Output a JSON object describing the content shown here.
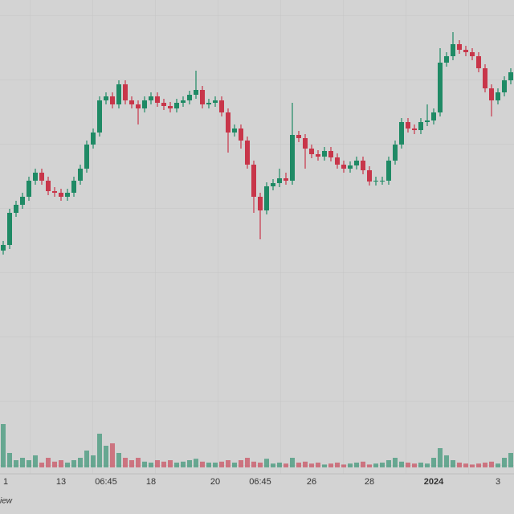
{
  "chart_data": {
    "type": "candlestick",
    "categories": [
      "1",
      null,
      null,
      null,
      null,
      null,
      null,
      null,
      null,
      "13",
      null,
      null,
      null,
      null,
      null,
      null,
      "06:45",
      null,
      null,
      null,
      null,
      null,
      null,
      "18",
      null,
      null,
      null,
      null,
      null,
      null,
      null,
      null,
      null,
      "20",
      null,
      null,
      null,
      null,
      null,
      null,
      "06:45",
      null,
      null,
      null,
      null,
      null,
      null,
      null,
      "26",
      null,
      null,
      null,
      null,
      null,
      null,
      null,
      null,
      "28",
      null,
      null,
      null,
      null,
      null,
      null,
      null,
      null,
      null,
      "2024",
      null,
      null,
      null,
      null,
      null,
      null,
      null,
      null,
      null,
      "3",
      null,
      null
    ],
    "open": [
      278,
      285,
      325,
      335,
      345,
      365,
      375,
      365,
      352,
      350,
      345,
      350,
      365,
      380,
      410,
      425,
      465,
      470,
      460,
      485,
      465,
      460,
      455,
      465,
      470,
      462,
      458,
      455,
      462,
      465,
      472,
      478,
      460,
      462,
      465,
      450,
      425,
      430,
      415,
      385,
      345,
      328,
      358,
      362,
      368,
      365,
      422,
      418,
      405,
      398,
      395,
      402,
      394,
      385,
      380,
      384,
      390,
      378,
      364,
      365,
      365,
      390,
      410,
      438,
      430,
      428,
      438,
      440,
      450,
      512,
      520,
      535,
      528,
      525,
      520,
      505,
      480,
      465,
      475,
      490
    ],
    "high": [
      290,
      330,
      340,
      350,
      370,
      380,
      380,
      370,
      357,
      355,
      355,
      370,
      385,
      415,
      430,
      470,
      475,
      475,
      490,
      490,
      470,
      465,
      470,
      475,
      475,
      467,
      463,
      467,
      470,
      477,
      502,
      483,
      467,
      470,
      470,
      455,
      435,
      435,
      420,
      390,
      350,
      363,
      367,
      380,
      375,
      462,
      427,
      423,
      410,
      403,
      407,
      407,
      399,
      390,
      389,
      395,
      395,
      383,
      370,
      370,
      395,
      415,
      443,
      443,
      435,
      443,
      460,
      455,
      530,
      525,
      550,
      540,
      533,
      530,
      525,
      510,
      485,
      480,
      495,
      505
    ],
    "low": [
      273,
      280,
      320,
      330,
      340,
      360,
      360,
      347,
      345,
      340,
      340,
      345,
      360,
      375,
      405,
      420,
      460,
      455,
      455,
      460,
      455,
      435,
      450,
      460,
      457,
      453,
      450,
      450,
      457,
      460,
      467,
      455,
      455,
      457,
      445,
      400,
      420,
      405,
      380,
      325,
      292,
      323,
      353,
      357,
      360,
      360,
      413,
      380,
      393,
      390,
      390,
      389,
      380,
      375,
      375,
      379,
      373,
      359,
      359,
      360,
      360,
      385,
      405,
      425,
      423,
      423,
      433,
      435,
      445,
      507,
      515,
      523,
      520,
      515,
      500,
      475,
      445,
      460,
      470,
      485
    ],
    "close": [
      285,
      325,
      335,
      345,
      365,
      375,
      365,
      352,
      350,
      345,
      350,
      365,
      380,
      410,
      425,
      465,
      470,
      460,
      485,
      465,
      460,
      455,
      465,
      470,
      462,
      458,
      455,
      462,
      465,
      472,
      478,
      460,
      462,
      465,
      450,
      425,
      430,
      415,
      385,
      345,
      328,
      358,
      362,
      368,
      365,
      422,
      418,
      405,
      398,
      395,
      402,
      394,
      385,
      380,
      384,
      390,
      378,
      364,
      365,
      365,
      390,
      410,
      438,
      430,
      428,
      438,
      440,
      450,
      512,
      520,
      535,
      528,
      525,
      520,
      505,
      480,
      465,
      475,
      490,
      500
    ],
    "volume": {
      "axis": "y2",
      "values": [
        90,
        30,
        15,
        20,
        15,
        25,
        10,
        20,
        12,
        15,
        10,
        15,
        20,
        35,
        25,
        70,
        45,
        50,
        30,
        20,
        15,
        20,
        12,
        10,
        15,
        12,
        15,
        10,
        12,
        15,
        18,
        12,
        10,
        10,
        12,
        15,
        10,
        15,
        20,
        12,
        10,
        18,
        8,
        10,
        8,
        20,
        10,
        12,
        8,
        10,
        6,
        8,
        10,
        6,
        8,
        10,
        12,
        6,
        8,
        10,
        15,
        20,
        12,
        10,
        8,
        10,
        8,
        20,
        40,
        25,
        15,
        10,
        8,
        6,
        8,
        10,
        12,
        8,
        20,
        30
      ]
    },
    "ylim": [
      0,
      590
    ],
    "y2lim": [
      0,
      100
    ],
    "up_color": "#1f8a65",
    "down_color": "#c8364a",
    "grid": true,
    "watermark": "iew"
  }
}
